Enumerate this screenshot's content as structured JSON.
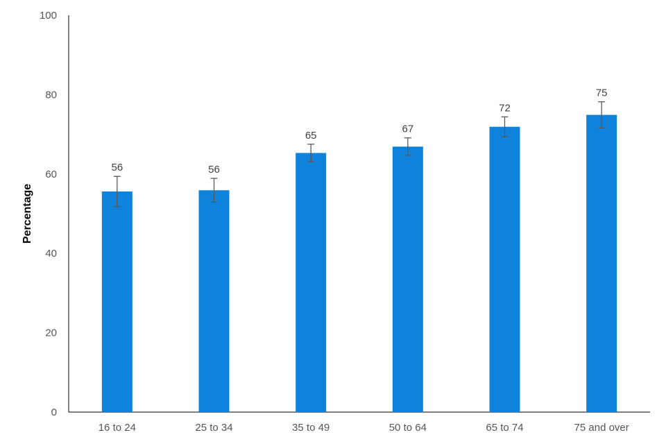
{
  "chart_data": {
    "type": "bar",
    "title": "",
    "xlabel": "",
    "ylabel": "Percentage",
    "ylim": [
      0,
      100
    ],
    "yticks": [
      0,
      20,
      40,
      60,
      80,
      100
    ],
    "grid": false,
    "legend": "none",
    "categories": [
      "16 to 24",
      "25 to 34",
      "35 to 49",
      "50 to 64",
      "65 to 74",
      "75 and over"
    ],
    "values": [
      55.6,
      55.9,
      65.3,
      66.9,
      71.9,
      74.9
    ],
    "data_labels": [
      "56",
      "56",
      "65",
      "67",
      "72",
      "75"
    ],
    "error_bars": [
      {
        "low": 51.8,
        "high": 59.4
      },
      {
        "low": 52.9,
        "high": 58.9
      },
      {
        "low": 63.1,
        "high": 67.5
      },
      {
        "low": 64.7,
        "high": 69.1
      },
      {
        "low": 69.4,
        "high": 74.4
      },
      {
        "low": 71.6,
        "high": 78.2
      }
    ],
    "bar_color": "#0f83dc",
    "error_bar_color": "#595959"
  }
}
